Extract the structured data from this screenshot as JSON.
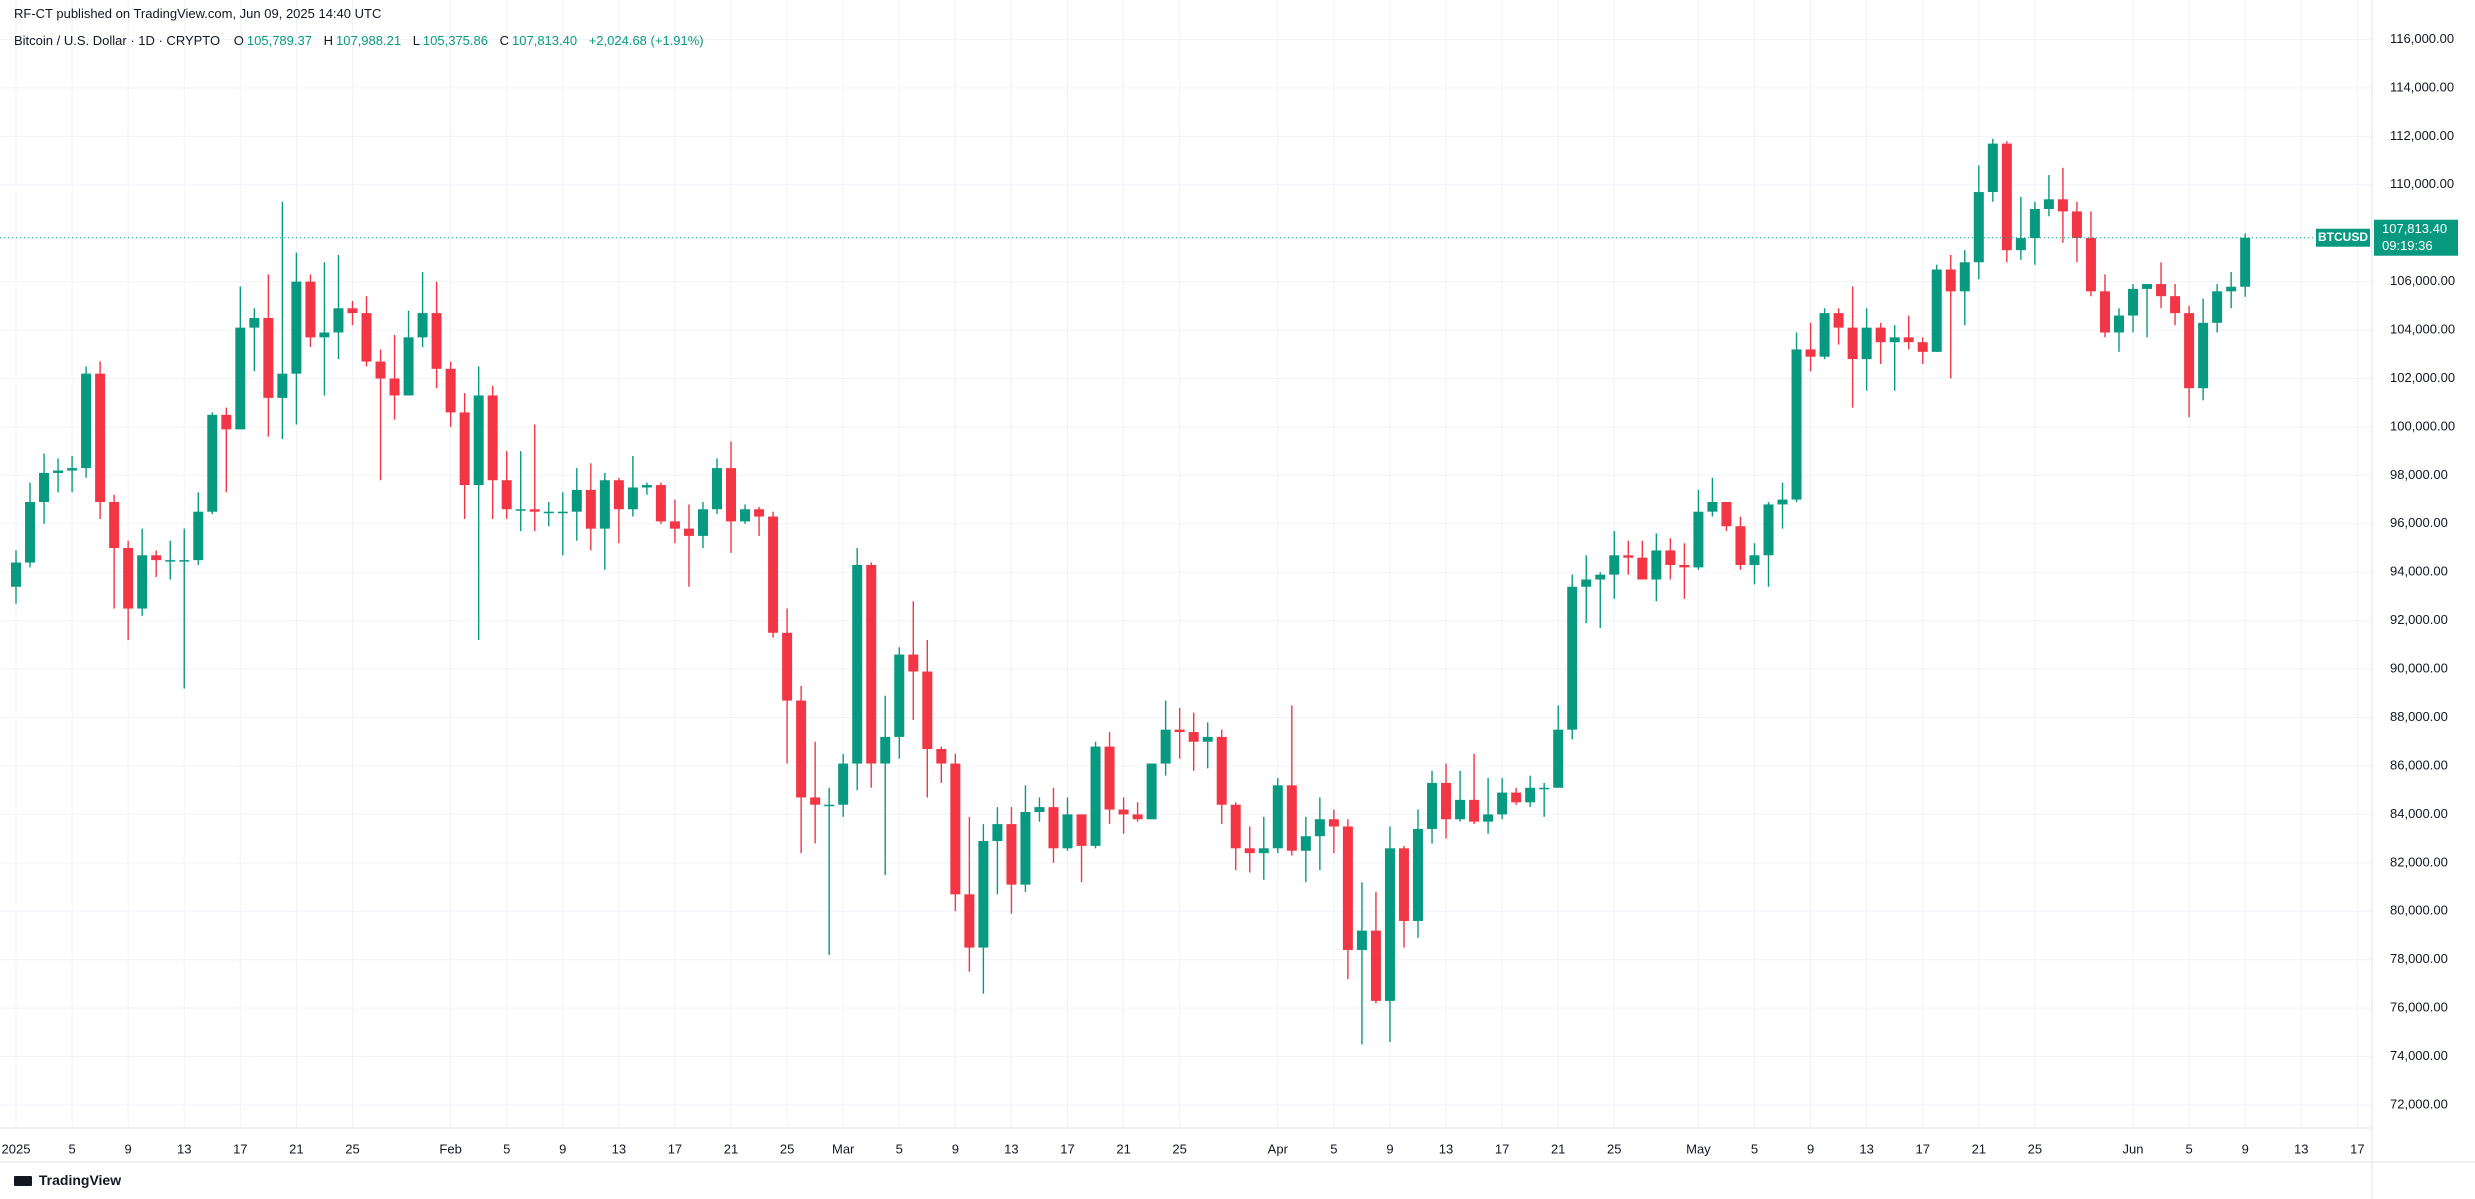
{
  "publisher": "RF-CT published on TradingView.com, Jun 09, 2025 14:40 UTC",
  "symbol": "Bitcoin / U.S. Dollar · 1D · CRYPTO",
  "ohlc_labels": [
    {
      "key": "O",
      "value": "105,789.37"
    },
    {
      "key": "H",
      "value": "107,988.21"
    },
    {
      "key": "L",
      "value": "105,375.86"
    },
    {
      "key": "C",
      "value": "107,813.40"
    }
  ],
  "change": "+2,024.68 (+1.91%)",
  "price_tag": {
    "symbol": "BTCUSD",
    "price": "107,813.40",
    "countdown": "09:19:36"
  },
  "brand": "TradingView",
  "chart_data": {
    "type": "candlestick",
    "up_color": "#089981",
    "down_color": "#f23645",
    "grid": true,
    "start": "2025-01-01",
    "ylim": [
      71050,
      117630
    ],
    "yticks": [
      {
        "value": 72000,
        "label": "72,000.00"
      },
      {
        "value": 74000,
        "label": "74,000.00"
      },
      {
        "value": 76000,
        "label": "76,000.00"
      },
      {
        "value": 78000,
        "label": "78,000.00"
      },
      {
        "value": 80000,
        "label": "80,000.00"
      },
      {
        "value": 82000,
        "label": "82,000.00"
      },
      {
        "value": 84000,
        "label": "84,000.00"
      },
      {
        "value": 86000,
        "label": "86,000.00"
      },
      {
        "value": 88000,
        "label": "88,000.00"
      },
      {
        "value": 90000,
        "label": "90,000.00"
      },
      {
        "value": 92000,
        "label": "92,000.00"
      },
      {
        "value": 94000,
        "label": "94,000.00"
      },
      {
        "value": 96000,
        "label": "96,000.00"
      },
      {
        "value": 98000,
        "label": "98,000.00"
      },
      {
        "value": 100000,
        "label": "100,000.00"
      },
      {
        "value": 102000,
        "label": "102,000.00"
      },
      {
        "value": 104000,
        "label": "104,000.00"
      },
      {
        "value": 106000,
        "label": "106,000.00"
      },
      {
        "value": 108000,
        "label": "108,000.00"
      },
      {
        "value": 110000,
        "label": "110,000.00"
      },
      {
        "value": 112000,
        "label": "112,000.00"
      },
      {
        "value": 114000,
        "label": "114,000.00"
      },
      {
        "value": 116000,
        "label": "116,000.00"
      }
    ],
    "xticks": [
      {
        "value": "2025-01-01",
        "label": "2025"
      },
      {
        "value": "2025-01-05",
        "label": "5"
      },
      {
        "value": "2025-01-09",
        "label": "9"
      },
      {
        "value": "2025-01-13",
        "label": "13"
      },
      {
        "value": "2025-01-17",
        "label": "17"
      },
      {
        "value": "2025-01-21",
        "label": "21"
      },
      {
        "value": "2025-01-25",
        "label": "25"
      },
      {
        "value": "2025-02-01",
        "label": "Feb"
      },
      {
        "value": "2025-02-05",
        "label": "5"
      },
      {
        "value": "2025-02-09",
        "label": "9"
      },
      {
        "value": "2025-02-13",
        "label": "13"
      },
      {
        "value": "2025-02-17",
        "label": "17"
      },
      {
        "value": "2025-02-21",
        "label": "21"
      },
      {
        "value": "2025-02-25",
        "label": "25"
      },
      {
        "value": "2025-03-01",
        "label": "Mar"
      },
      {
        "value": "2025-03-05",
        "label": "5"
      },
      {
        "value": "2025-03-09",
        "label": "9"
      },
      {
        "value": "2025-03-13",
        "label": "13"
      },
      {
        "value": "2025-03-17",
        "label": "17"
      },
      {
        "value": "2025-03-21",
        "label": "21"
      },
      {
        "value": "2025-03-25",
        "label": "25"
      },
      {
        "value": "2025-04-01",
        "label": "Apr"
      },
      {
        "value": "2025-04-05",
        "label": "5"
      },
      {
        "value": "2025-04-09",
        "label": "9"
      },
      {
        "value": "2025-04-13",
        "label": "13"
      },
      {
        "value": "2025-04-17",
        "label": "17"
      },
      {
        "value": "2025-04-21",
        "label": "21"
      },
      {
        "value": "2025-04-25",
        "label": "25"
      },
      {
        "value": "2025-05-01",
        "label": "May"
      },
      {
        "value": "2025-05-05",
        "label": "5"
      },
      {
        "value": "2025-05-09",
        "label": "9"
      },
      {
        "value": "2025-05-13",
        "label": "13"
      },
      {
        "value": "2025-05-17",
        "label": "17"
      },
      {
        "value": "2025-05-21",
        "label": "21"
      },
      {
        "value": "2025-05-25",
        "label": "25"
      },
      {
        "value": "2025-06-01",
        "label": "Jun"
      },
      {
        "value": "2025-06-05",
        "label": "5"
      },
      {
        "value": "2025-06-09",
        "label": "9"
      },
      {
        "value": "2025-06-13",
        "label": "13"
      },
      {
        "value": "2025-06-17",
        "label": "17"
      }
    ],
    "ohlc": [
      [
        93400,
        94900,
        92700,
        94400
      ],
      [
        94400,
        97700,
        94200,
        96900
      ],
      [
        96900,
        98900,
        96000,
        98100
      ],
      [
        98100,
        98700,
        97300,
        98200
      ],
      [
        98200,
        98800,
        97300,
        98300
      ],
      [
        98300,
        102500,
        97900,
        102200
      ],
      [
        102200,
        102700,
        96200,
        96900
      ],
      [
        96900,
        97200,
        92500,
        95000
      ],
      [
        95000,
        95300,
        91200,
        92500
      ],
      [
        92500,
        95800,
        92200,
        94700
      ],
      [
        94700,
        94900,
        93800,
        94500
      ],
      [
        94500,
        95300,
        93700,
        94500
      ],
      [
        94500,
        95800,
        89200,
        94500
      ],
      [
        94500,
        97300,
        94300,
        96500
      ],
      [
        96500,
        100600,
        96400,
        100500
      ],
      [
        100500,
        100800,
        97300,
        99900
      ],
      [
        99900,
        105800,
        99900,
        104100
      ],
      [
        104100,
        104900,
        102300,
        104500
      ],
      [
        104500,
        106300,
        99600,
        101200
      ],
      [
        101200,
        109300,
        99500,
        102200
      ],
      [
        102200,
        107200,
        100100,
        106000
      ],
      [
        106000,
        106300,
        103300,
        103700
      ],
      [
        103700,
        106800,
        101300,
        103900
      ],
      [
        103900,
        107100,
        102800,
        104900
      ],
      [
        104900,
        105200,
        104200,
        104700
      ],
      [
        104700,
        105400,
        102500,
        102700
      ],
      [
        102700,
        103200,
        97800,
        102000
      ],
      [
        102000,
        103800,
        100300,
        101300
      ],
      [
        101300,
        104800,
        101300,
        103700
      ],
      [
        103700,
        106400,
        103300,
        104700
      ],
      [
        104700,
        106000,
        101600,
        102400
      ],
      [
        102400,
        102700,
        100000,
        100600
      ],
      [
        100600,
        101400,
        96200,
        97600
      ],
      [
        97600,
        102500,
        91200,
        101300
      ],
      [
        101300,
        101700,
        96200,
        97800
      ],
      [
        97800,
        99000,
        96200,
        96600
      ],
      [
        96600,
        99000,
        95700,
        96600
      ],
      [
        96600,
        100100,
        95700,
        96500
      ],
      [
        96500,
        96900,
        95900,
        96500
      ],
      [
        96500,
        97300,
        94700,
        96500
      ],
      [
        96500,
        98300,
        95300,
        97400
      ],
      [
        97400,
        98500,
        94900,
        95800
      ],
      [
        95800,
        98100,
        94100,
        97800
      ],
      [
        97800,
        97900,
        95200,
        96600
      ],
      [
        96600,
        98800,
        96300,
        97500
      ],
      [
        97500,
        97700,
        97200,
        97600
      ],
      [
        97600,
        97700,
        96000,
        96100
      ],
      [
        96100,
        97000,
        95200,
        95800
      ],
      [
        95800,
        96800,
        93400,
        95500
      ],
      [
        95500,
        96900,
        95000,
        96600
      ],
      [
        96600,
        98700,
        96400,
        98300
      ],
      [
        98300,
        99400,
        94800,
        96100
      ],
      [
        96100,
        96800,
        96000,
        96600
      ],
      [
        96600,
        96700,
        95500,
        96300
      ],
      [
        96300,
        96500,
        91300,
        91500
      ],
      [
        91500,
        92500,
        86100,
        88700
      ],
      [
        88700,
        89300,
        82400,
        84700
      ],
      [
        84700,
        87000,
        82800,
        84400
      ],
      [
        84400,
        85100,
        78200,
        84400
      ],
      [
        84400,
        86500,
        83900,
        86100
      ],
      [
        86100,
        95000,
        85000,
        94300
      ],
      [
        94300,
        94400,
        85100,
        86100
      ],
      [
        86100,
        88900,
        81500,
        87200
      ],
      [
        87200,
        90900,
        86300,
        90600
      ],
      [
        90600,
        92800,
        87900,
        89900
      ],
      [
        89900,
        91200,
        84700,
        86700
      ],
      [
        86700,
        86800,
        85300,
        86100
      ],
      [
        86100,
        86500,
        80000,
        80700
      ],
      [
        80700,
        83900,
        77500,
        78500
      ],
      [
        78500,
        83600,
        76600,
        82900
      ],
      [
        82900,
        84300,
        80700,
        83600
      ],
      [
        83600,
        84300,
        79900,
        81100
      ],
      [
        81100,
        85200,
        80800,
        84100
      ],
      [
        84100,
        84700,
        83700,
        84300
      ],
      [
        84300,
        85100,
        82000,
        82600
      ],
      [
        82600,
        84700,
        82500,
        84000
      ],
      [
        84000,
        84000,
        81200,
        82700
      ],
      [
        82700,
        87000,
        82600,
        86800
      ],
      [
        86800,
        87400,
        83600,
        84200
      ],
      [
        84200,
        84700,
        83200,
        84000
      ],
      [
        84000,
        84500,
        83700,
        83800
      ],
      [
        83800,
        86100,
        83800,
        86100
      ],
      [
        86100,
        88700,
        85600,
        87500
      ],
      [
        87500,
        88400,
        86300,
        87400
      ],
      [
        87400,
        88200,
        85800,
        87000
      ],
      [
        87000,
        87800,
        85900,
        87200
      ],
      [
        87200,
        87500,
        83600,
        84400
      ],
      [
        84400,
        84500,
        81700,
        82600
      ],
      [
        82600,
        83500,
        81600,
        82400
      ],
      [
        82400,
        83900,
        81300,
        82600
      ],
      [
        82600,
        85500,
        82400,
        85200
      ],
      [
        85200,
        88500,
        82300,
        82500
      ],
      [
        82500,
        83900,
        81200,
        83100
      ],
      [
        83100,
        84700,
        81700,
        83800
      ],
      [
        83800,
        84200,
        82400,
        83500
      ],
      [
        83500,
        83800,
        77200,
        78400
      ],
      [
        78400,
        81200,
        74500,
        79200
      ],
      [
        79200,
        80800,
        76200,
        76300
      ],
      [
        76300,
        83500,
        74600,
        82600
      ],
      [
        82600,
        82700,
        78500,
        79600
      ],
      [
        79600,
        84200,
        78900,
        83400
      ],
      [
        83400,
        85800,
        82800,
        85300
      ],
      [
        85300,
        86100,
        83000,
        83800
      ],
      [
        83800,
        85800,
        83700,
        84600
      ],
      [
        84600,
        86500,
        83600,
        83700
      ],
      [
        83700,
        85500,
        83200,
        84000
      ],
      [
        84000,
        85500,
        83800,
        84900
      ],
      [
        84900,
        85100,
        84400,
        84500
      ],
      [
        84500,
        85600,
        84300,
        85100
      ],
      [
        85100,
        85300,
        83900,
        85100
      ],
      [
        85100,
        88500,
        85100,
        87500
      ],
      [
        87500,
        93900,
        87100,
        93400
      ],
      [
        93400,
        94700,
        91900,
        93700
      ],
      [
        93700,
        94000,
        91700,
        93900
      ],
      [
        93900,
        95700,
        92900,
        94700
      ],
      [
        94700,
        95300,
        93900,
        94600
      ],
      [
        94600,
        95300,
        93700,
        93700
      ],
      [
        93700,
        95600,
        92800,
        94900
      ],
      [
        94900,
        95400,
        93700,
        94300
      ],
      [
        94300,
        95200,
        92900,
        94200
      ],
      [
        94200,
        97400,
        94100,
        96500
      ],
      [
        96500,
        97900,
        96300,
        96900
      ],
      [
        96900,
        96900,
        95700,
        95900
      ],
      [
        95900,
        96300,
        94100,
        94300
      ],
      [
        94300,
        95200,
        93500,
        94700
      ],
      [
        94700,
        96900,
        93400,
        96800
      ],
      [
        96800,
        97700,
        95800,
        97000
      ],
      [
        97000,
        103900,
        96900,
        103200
      ],
      [
        103200,
        104300,
        102300,
        102900
      ],
      [
        102900,
        104900,
        102800,
        104700
      ],
      [
        104700,
        104900,
        103400,
        104100
      ],
      [
        104100,
        105800,
        100800,
        102800
      ],
      [
        102800,
        104900,
        101500,
        104100
      ],
      [
        104100,
        104300,
        102600,
        103500
      ],
      [
        103500,
        104200,
        101500,
        103700
      ],
      [
        103700,
        104600,
        103200,
        103500
      ],
      [
        103500,
        103700,
        102600,
        103100
      ],
      [
        103100,
        106700,
        103100,
        106500
      ],
      [
        106500,
        107100,
        102000,
        105600
      ],
      [
        105600,
        107300,
        104200,
        106800
      ],
      [
        106800,
        110800,
        106100,
        109700
      ],
      [
        109700,
        111900,
        109300,
        111700
      ],
      [
        111700,
        111800,
        106800,
        107300
      ],
      [
        107300,
        109500,
        106900,
        107800
      ],
      [
        107800,
        109300,
        106700,
        109000
      ],
      [
        109000,
        110400,
        108700,
        109400
      ],
      [
        109400,
        110700,
        107600,
        108900
      ],
      [
        108900,
        109300,
        106800,
        107800
      ],
      [
        107800,
        108900,
        105400,
        105600
      ],
      [
        105600,
        106300,
        103700,
        103900
      ],
      [
        103900,
        104900,
        103100,
        104600
      ],
      [
        104600,
        105900,
        103900,
        105700
      ],
      [
        105700,
        105900,
        103700,
        105900
      ],
      [
        105900,
        106800,
        104900,
        105400
      ],
      [
        105400,
        105900,
        104200,
        104700
      ],
      [
        104700,
        105000,
        100400,
        101600
      ],
      [
        101600,
        105300,
        101100,
        104300
      ],
      [
        104300,
        105900,
        103900,
        105600
      ],
      [
        105600,
        106400,
        104900,
        105789.37
      ],
      [
        105789.37,
        107988.21,
        105375.86,
        107813.4
      ]
    ]
  }
}
